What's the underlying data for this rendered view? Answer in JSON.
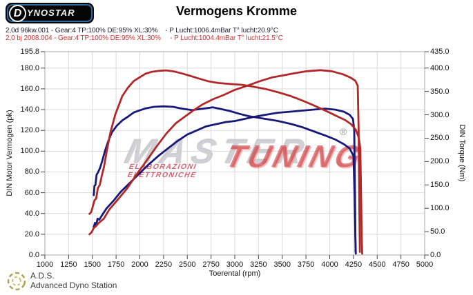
{
  "header": {
    "logo_d": "D",
    "logo_word": "YNOSTAR",
    "title": "Vermogens Kromme",
    "runs": [
      {
        "label": "2,0d 96kw.001 - Gear:4 TP:100% DE:95% XL:30%    - P Lucht:1006.4mBar T° lucht:20.9°C",
        "color": "#1c1c2e"
      },
      {
        "label": "2,0 bj 2008.004 - Gear:4 TP:100% DE:95% XL:30%     - P Lucht:1004.4mBar T° lucht:21.5°C",
        "color": "#cc3333"
      }
    ]
  },
  "watermark": {
    "word_gray": "MASTER",
    "word_red": "TUNING",
    "subtext": "ELABORAZIONI ELETTRONICHE",
    "registered": "®",
    "gray_color": "#c5c5cb",
    "red_color": "#cd3a3e"
  },
  "footer": {
    "abbr": "A.D.S.",
    "name": "Advanced Dyno Station"
  },
  "chart_data": {
    "type": "line",
    "title": "Vermogens Kromme",
    "xlabel": "Toerental (rpm)",
    "ylabel_left": "DIN Motor Vermogen (pk)",
    "ylabel_right": "DIN Torque (Nm)",
    "xlim": [
      1000,
      5000
    ],
    "ylim_left": [
      0,
      195.8
    ],
    "ylim_right": [
      0,
      435.0
    ],
    "grid": true,
    "grid_color": "#d9d9d9",
    "frame_color": "#a8a8a8",
    "tick_color": "#444444",
    "x_ticks": [
      1000,
      1250,
      1500,
      1750,
      2000,
      2250,
      2500,
      2750,
      3000,
      3250,
      3500,
      3750,
      4000,
      4250,
      4500,
      4750,
      5000
    ],
    "y_left_tick_labels": [
      "195.8",
      "180.0",
      "160.0",
      "140.0",
      "120.0",
      "100.0",
      "80.0",
      "60.0",
      "40.0",
      "20.0",
      "0.0"
    ],
    "y_right_tick_labels": [
      "435.0",
      "400.0",
      "350.0",
      "300.0",
      "250.0",
      "200.0",
      "150.0",
      "100.0",
      "50.0",
      "0.0"
    ],
    "series": [
      {
        "name": "power-run1-stock",
        "run": "2,0d 96kw.001",
        "unit": "pk",
        "axis": "left",
        "color": "#181878",
        "points": [
          [
            1515,
            27
          ],
          [
            1528,
            31
          ],
          [
            1540,
            29
          ],
          [
            1555,
            35
          ],
          [
            1572,
            34
          ],
          [
            1600,
            38
          ],
          [
            1650,
            45
          ],
          [
            1720,
            52
          ],
          [
            1800,
            61
          ],
          [
            1890,
            69
          ],
          [
            1990,
            78
          ],
          [
            2090,
            87
          ],
          [
            2190,
            95
          ],
          [
            2300,
            103
          ],
          [
            2400,
            110
          ],
          [
            2500,
            116
          ],
          [
            2600,
            120
          ],
          [
            2700,
            124
          ],
          [
            2800,
            126
          ],
          [
            2900,
            128
          ],
          [
            3000,
            129
          ],
          [
            3100,
            131
          ],
          [
            3200,
            133
          ],
          [
            3320,
            135
          ],
          [
            3450,
            137
          ],
          [
            3580,
            138
          ],
          [
            3700,
            139
          ],
          [
            3820,
            140
          ],
          [
            3950,
            141
          ],
          [
            4060,
            140
          ],
          [
            4150,
            138
          ],
          [
            4210,
            135
          ],
          [
            4245,
            131
          ],
          [
            4258,
            120
          ],
          [
            4266,
            60
          ],
          [
            4272,
            3
          ]
        ]
      },
      {
        "name": "torque-run1-stock",
        "run": "2,0d 96kw.001",
        "unit": "Nm",
        "axis": "right",
        "color": "#181878",
        "points": [
          [
            1515,
            128
          ],
          [
            1522,
            148
          ],
          [
            1532,
            150
          ],
          [
            1545,
            172
          ],
          [
            1558,
            176
          ],
          [
            1580,
            186
          ],
          [
            1605,
            202
          ],
          [
            1635,
            224
          ],
          [
            1665,
            242
          ],
          [
            1705,
            262
          ],
          [
            1755,
            276
          ],
          [
            1815,
            288
          ],
          [
            1875,
            296
          ],
          [
            1935,
            305
          ],
          [
            2005,
            310
          ],
          [
            2065,
            314
          ],
          [
            2150,
            317
          ],
          [
            2250,
            318
          ],
          [
            2350,
            317
          ],
          [
            2450,
            313
          ],
          [
            2550,
            310
          ],
          [
            2660,
            313
          ],
          [
            2770,
            316
          ],
          [
            2860,
            312
          ],
          [
            2950,
            308
          ],
          [
            3050,
            302
          ],
          [
            3150,
            297
          ],
          [
            3300,
            292
          ],
          [
            3450,
            287
          ],
          [
            3600,
            280
          ],
          [
            3720,
            273
          ],
          [
            3840,
            264
          ],
          [
            3950,
            256
          ],
          [
            4060,
            247
          ],
          [
            4150,
            237
          ],
          [
            4210,
            228
          ],
          [
            4250,
            212
          ],
          [
            4262,
            130
          ],
          [
            4270,
            40
          ],
          [
            4275,
            3
          ]
        ]
      },
      {
        "name": "power-run2-tuned",
        "run": "2,0 bj 2008.004",
        "unit": "pk",
        "axis": "left",
        "color": "#b02828",
        "points": [
          [
            1470,
            20
          ],
          [
            1492,
            22
          ],
          [
            1515,
            26
          ],
          [
            1540,
            28
          ],
          [
            1568,
            31
          ],
          [
            1620,
            35
          ],
          [
            1680,
            44
          ],
          [
            1765,
            53
          ],
          [
            1865,
            64
          ],
          [
            1985,
            80
          ],
          [
            2080,
            92
          ],
          [
            2180,
            105
          ],
          [
            2280,
            117
          ],
          [
            2380,
            127
          ],
          [
            2470,
            133
          ],
          [
            2560,
            139
          ],
          [
            2660,
            145
          ],
          [
            2770,
            150
          ],
          [
            2880,
            154
          ],
          [
            3000,
            159
          ],
          [
            3130,
            163
          ],
          [
            3250,
            167
          ],
          [
            3390,
            171
          ],
          [
            3510,
            173
          ],
          [
            3630,
            175
          ],
          [
            3760,
            177
          ],
          [
            3900,
            178
          ],
          [
            4020,
            177
          ],
          [
            4140,
            174
          ],
          [
            4215,
            171
          ],
          [
            4268,
            168
          ],
          [
            4295,
            163
          ],
          [
            4305,
            120
          ],
          [
            4313,
            40
          ],
          [
            4318,
            3
          ]
        ]
      },
      {
        "name": "torque-run2-tuned",
        "run": "2,0 bj 2008.004",
        "unit": "Nm",
        "axis": "right",
        "color": "#b02828",
        "points": [
          [
            1470,
            88
          ],
          [
            1488,
            92
          ],
          [
            1505,
            104
          ],
          [
            1522,
            117
          ],
          [
            1540,
            121
          ],
          [
            1558,
            143
          ],
          [
            1578,
            150
          ],
          [
            1600,
            170
          ],
          [
            1622,
            188
          ],
          [
            1655,
            226
          ],
          [
            1690,
            262
          ],
          [
            1740,
            300
          ],
          [
            1815,
            340
          ],
          [
            1875,
            358
          ],
          [
            1935,
            372
          ],
          [
            2005,
            381
          ],
          [
            2060,
            388
          ],
          [
            2125,
            392
          ],
          [
            2200,
            394
          ],
          [
            2275,
            395
          ],
          [
            2355,
            393
          ],
          [
            2435,
            389
          ],
          [
            2520,
            384
          ],
          [
            2615,
            378
          ],
          [
            2715,
            372
          ],
          [
            2825,
            368
          ],
          [
            2950,
            366
          ],
          [
            3080,
            364
          ],
          [
            3200,
            360
          ],
          [
            3330,
            355
          ],
          [
            3460,
            348
          ],
          [
            3590,
            340
          ],
          [
            3705,
            331
          ],
          [
            3810,
            322
          ],
          [
            3910,
            313
          ],
          [
            4005,
            304
          ],
          [
            4095,
            295
          ],
          [
            4160,
            289
          ],
          [
            4225,
            280
          ],
          [
            4275,
            268
          ],
          [
            4305,
            252
          ],
          [
            4322,
            228
          ],
          [
            4330,
            130
          ],
          [
            4337,
            40
          ],
          [
            4342,
            3
          ]
        ]
      }
    ]
  }
}
